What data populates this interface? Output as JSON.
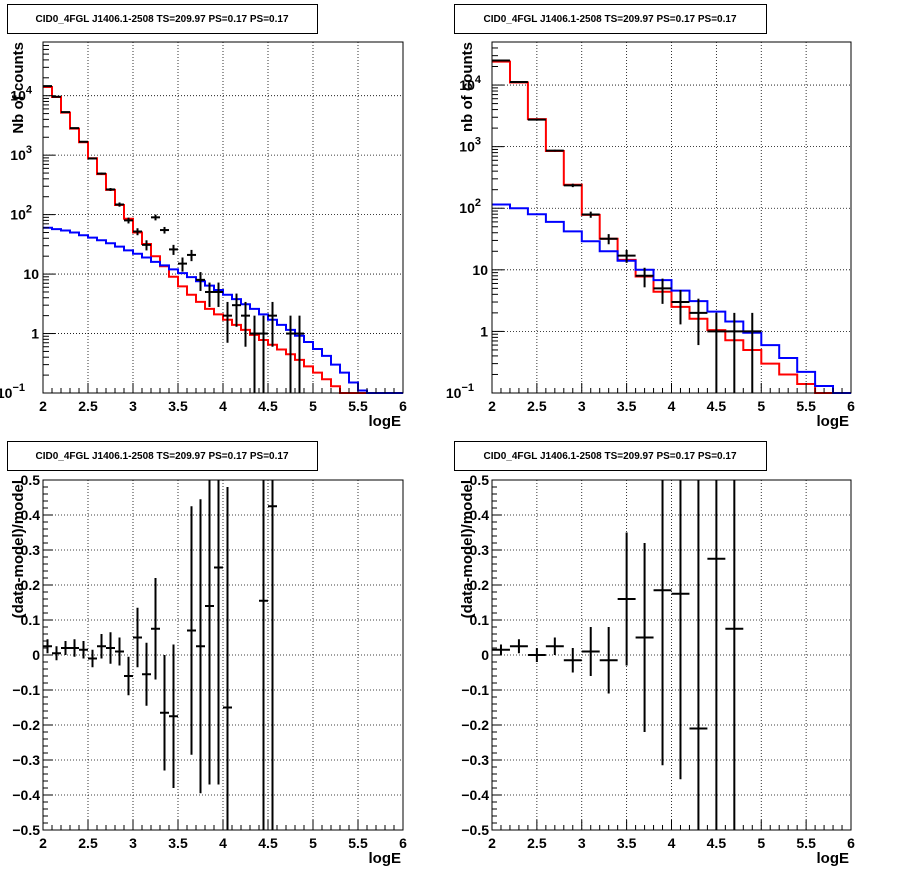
{
  "chart_data": [
    {
      "type": "line",
      "title": "CID0_4FGL J1406.1-2508 TS=209.97 PS=0.17 PS=0.17",
      "xlabel": "logE",
      "ylabel": "Nb of counts",
      "xlim": [
        2,
        6
      ],
      "ylim": [
        0.1,
        80000
      ],
      "yscale": "log",
      "grid": true,
      "xticks": [
        "2",
        "2.5",
        "3",
        "3.5",
        "4",
        "4.5",
        "5",
        "5.5",
        "6"
      ],
      "yticks": [
        {
          "v": 0.1,
          "label": "10",
          "exp": "−1"
        },
        {
          "v": 1,
          "label": "1"
        },
        {
          "v": 10,
          "label": "10"
        },
        {
          "v": 100,
          "label": "10",
          "exp": "2"
        },
        {
          "v": 1000,
          "label": "10",
          "exp": "3"
        },
        {
          "v": 10000,
          "label": "10",
          "exp": "4"
        }
      ],
      "bin_edges": [
        2.0,
        2.1,
        2.2,
        2.3,
        2.4,
        2.5,
        2.6,
        2.7,
        2.8,
        2.9,
        3.0,
        3.1,
        3.2,
        3.3,
        3.4,
        3.5,
        3.6,
        3.7,
        3.8,
        3.9,
        4.0,
        4.1,
        4.2,
        4.3,
        4.4,
        4.5,
        4.6,
        4.7,
        4.8,
        4.9,
        5.0,
        5.1,
        5.2,
        5.3,
        5.4,
        5.5,
        5.6,
        5.7,
        5.8,
        5.9,
        6.0
      ],
      "series": [
        {
          "name": "",
          "color": "#ff0000",
          "values": [
            14000,
            9500,
            5200,
            2800,
            1650,
            890,
            480,
            260,
            145,
            85,
            50,
            32,
            20,
            13.5,
            9,
            6.2,
            4.5,
            3.4,
            2.6,
            2.1,
            1.7,
            1.4,
            1.15,
            0.95,
            0.78,
            0.65,
            0.54,
            0.45,
            0.36,
            0.28,
            0.22,
            0.17,
            0.13,
            0.1,
            0.1,
            0.1,
            0.1,
            0.1,
            0.1,
            0.1
          ]
        },
        {
          "name": "",
          "color": "#0000ff",
          "values": [
            60,
            57,
            54,
            50,
            45,
            41,
            37,
            33,
            29,
            25,
            22,
            19,
            16,
            14,
            12,
            10.4,
            8.9,
            7.6,
            6.4,
            5.4,
            4.5,
            3.8,
            3.1,
            2.6,
            2.1,
            1.7,
            1.4,
            1.15,
            0.92,
            0.72,
            0.55,
            0.42,
            0.3,
            0.22,
            0.15,
            0.11,
            0.1,
            0.1,
            0.1,
            0.1
          ]
        }
      ],
      "data_points": [
        {
          "x": 2.05,
          "y": 14500,
          "lo": 14300,
          "hi": 14700
        },
        {
          "x": 2.15,
          "y": 9600,
          "lo": 9500,
          "hi": 9700
        },
        {
          "x": 2.25,
          "y": 5300,
          "lo": 5230,
          "hi": 5370
        },
        {
          "x": 2.35,
          "y": 2850,
          "lo": 2800,
          "hi": 2900
        },
        {
          "x": 2.45,
          "y": 1680,
          "lo": 1640,
          "hi": 1720
        },
        {
          "x": 2.55,
          "y": 880,
          "lo": 850,
          "hi": 910
        },
        {
          "x": 2.65,
          "y": 490,
          "lo": 470,
          "hi": 510
        },
        {
          "x": 2.75,
          "y": 265,
          "lo": 250,
          "hi": 280
        },
        {
          "x": 2.85,
          "y": 148,
          "lo": 136,
          "hi": 160
        },
        {
          "x": 2.95,
          "y": 80,
          "lo": 71,
          "hi": 89
        },
        {
          "x": 3.05,
          "y": 52,
          "lo": 45,
          "hi": 59
        },
        {
          "x": 3.15,
          "y": 31,
          "lo": 25,
          "hi": 37
        },
        {
          "x": 3.25,
          "y": 90,
          "lo": 80,
          "hi": 100
        },
        {
          "x": 3.35,
          "y": 55,
          "lo": 48,
          "hi": 62
        },
        {
          "x": 3.45,
          "y": 26,
          "lo": 21,
          "hi": 31
        },
        {
          "x": 3.55,
          "y": 15,
          "lo": 11,
          "hi": 19
        },
        {
          "x": 3.65,
          "y": 21,
          "lo": 16.5,
          "hi": 25.5
        },
        {
          "x": 3.75,
          "y": 8,
          "lo": 5.2,
          "hi": 10.8
        },
        {
          "x": 3.85,
          "y": 5,
          "lo": 2.8,
          "hi": 7.2
        },
        {
          "x": 3.95,
          "y": 5,
          "lo": 2.8,
          "hi": 7.2
        },
        {
          "x": 4.05,
          "y": 2,
          "lo": 0.7,
          "hi": 3.4
        },
        {
          "x": 4.15,
          "y": 3,
          "lo": 1.3,
          "hi": 4.7
        },
        {
          "x": 4.25,
          "y": 2,
          "lo": 0.6,
          "hi": 3.4
        },
        {
          "x": 4.35,
          "y": 1,
          "lo": 0.1,
          "hi": 2.0
        },
        {
          "x": 4.45,
          "y": 1,
          "lo": 0.1,
          "hi": 2.0
        },
        {
          "x": 4.55,
          "y": 2,
          "lo": 0.6,
          "hi": 3.4
        },
        {
          "x": 4.75,
          "y": 1,
          "lo": 0.1,
          "hi": 2.0
        },
        {
          "x": 4.85,
          "y": 1,
          "lo": 0.1,
          "hi": 2.0
        }
      ]
    },
    {
      "type": "line",
      "title": "CID0_4FGL J1406.1-2508 TS=209.97 PS=0.17 PS=0.17",
      "xlabel": "logE",
      "ylabel": "nb of counts",
      "xlim": [
        2,
        6
      ],
      "ylim": [
        0.1,
        50000
      ],
      "yscale": "log",
      "grid": true,
      "xticks": [
        "2",
        "2.5",
        "3",
        "3.5",
        "4",
        "4.5",
        "5",
        "5.5",
        "6"
      ],
      "yticks": [
        {
          "v": 0.1,
          "label": "10",
          "exp": "−1"
        },
        {
          "v": 1,
          "label": "1"
        },
        {
          "v": 10,
          "label": "10"
        },
        {
          "v": 100,
          "label": "10",
          "exp": "2"
        },
        {
          "v": 1000,
          "label": "10",
          "exp": "3"
        },
        {
          "v": 10000,
          "label": "10",
          "exp": "4"
        }
      ],
      "bin_edges": [
        2.0,
        2.2,
        2.4,
        2.6,
        2.8,
        3.0,
        3.2,
        3.4,
        3.6,
        3.8,
        4.0,
        4.2,
        4.4,
        4.6,
        4.8,
        5.0,
        5.2,
        5.4,
        5.6,
        5.8,
        6.0
      ],
      "series": [
        {
          "name": "",
          "color": "#ff0000",
          "values": [
            24000,
            11000,
            2800,
            850,
            240,
            78,
            32,
            14.5,
            7.8,
            4.4,
            2.5,
            1.6,
            1.05,
            0.72,
            0.5,
            0.3,
            0.2,
            0.14,
            0.1,
            0.1
          ]
        },
        {
          "name": "",
          "color": "#0000ff",
          "values": [
            115,
            100,
            80,
            60,
            42,
            29,
            20,
            14,
            10,
            6.8,
            4.6,
            3.1,
            2.1,
            1.45,
            0.95,
            0.6,
            0.37,
            0.22,
            0.13,
            0.1
          ]
        }
      ],
      "data_points": [
        {
          "x": 2.1,
          "y": 25000,
          "lo": 24800,
          "hi": 25200
        },
        {
          "x": 2.3,
          "y": 11200,
          "lo": 11050,
          "hi": 11350
        },
        {
          "x": 2.5,
          "y": 2750,
          "lo": 2700,
          "hi": 2800
        },
        {
          "x": 2.7,
          "y": 860,
          "lo": 830,
          "hi": 890
        },
        {
          "x": 2.9,
          "y": 235,
          "lo": 220,
          "hi": 250
        },
        {
          "x": 3.1,
          "y": 79,
          "lo": 70,
          "hi": 88
        },
        {
          "x": 3.3,
          "y": 32,
          "lo": 26,
          "hi": 38
        },
        {
          "x": 3.5,
          "y": 17,
          "lo": 13,
          "hi": 21
        },
        {
          "x": 3.7,
          "y": 8,
          "lo": 5.2,
          "hi": 10.8
        },
        {
          "x": 3.9,
          "y": 5,
          "lo": 2.8,
          "hi": 7.2
        },
        {
          "x": 4.1,
          "y": 3,
          "lo": 1.3,
          "hi": 4.7
        },
        {
          "x": 4.3,
          "y": 2,
          "lo": 0.6,
          "hi": 3.4
        },
        {
          "x": 4.5,
          "y": 1,
          "lo": 0.1,
          "hi": 2.0
        },
        {
          "x": 4.7,
          "y": 1,
          "lo": 0.1,
          "hi": 2.0
        },
        {
          "x": 4.9,
          "y": 1,
          "lo": 0.1,
          "hi": 2.0
        }
      ]
    },
    {
      "type": "scatter",
      "title": "CID0_4FGL J1406.1-2508 TS=209.97 PS=0.17 PS=0.17",
      "xlabel": "logE",
      "ylabel": "(data-model)/model",
      "xlim": [
        2,
        6
      ],
      "ylim": [
        -0.5,
        0.5
      ],
      "grid": true,
      "xticks": [
        "2",
        "2.5",
        "3",
        "3.5",
        "4",
        "4.5",
        "5",
        "5.5",
        "6"
      ],
      "yticks": [
        "−0.5",
        "−0.4",
        "−0.3",
        "−0.2",
        "−0.1",
        "0",
        "0.1",
        "0.2",
        "0.3",
        "0.4",
        "0.5"
      ],
      "bin_width": 0.1,
      "data_points": [
        {
          "x": 2.05,
          "y": 0.025,
          "err": 0.02
        },
        {
          "x": 2.15,
          "y": 0.005,
          "err": 0.02
        },
        {
          "x": 2.25,
          "y": 0.02,
          "err": 0.02
        },
        {
          "x": 2.35,
          "y": 0.02,
          "err": 0.025
        },
        {
          "x": 2.45,
          "y": 0.015,
          "err": 0.025
        },
        {
          "x": 2.55,
          "y": -0.01,
          "err": 0.025
        },
        {
          "x": 2.65,
          "y": 0.025,
          "err": 0.035
        },
        {
          "x": 2.75,
          "y": 0.02,
          "err": 0.045
        },
        {
          "x": 2.85,
          "y": 0.01,
          "err": 0.04
        },
        {
          "x": 2.95,
          "y": -0.06,
          "err": 0.055
        },
        {
          "x": 3.05,
          "y": 0.05,
          "err": 0.085
        },
        {
          "x": 3.15,
          "y": -0.055,
          "err": 0.09
        },
        {
          "x": 3.25,
          "y": 0.075,
          "err": 0.145
        },
        {
          "x": 3.35,
          "y": -0.165,
          "err": 0.165
        },
        {
          "x": 3.45,
          "y": -0.175,
          "err": 0.205
        },
        {
          "x": 3.65,
          "y": 0.07,
          "err": 0.355
        },
        {
          "x": 3.75,
          "y": 0.025,
          "err": 0.42
        },
        {
          "x": 3.85,
          "y": 0.14,
          "err": 0.51
        },
        {
          "x": 3.95,
          "y": 0.25,
          "err": 0.62
        },
        {
          "x": 4.05,
          "y": -0.15,
          "err": 0.63
        },
        {
          "x": 4.45,
          "y": 0.155,
          "err": 0.9
        },
        {
          "x": 4.55,
          "y": 0.425,
          "err": 1.0
        }
      ]
    },
    {
      "type": "scatter",
      "title": "CID0_4FGL J1406.1-2508 TS=209.97 PS=0.17 PS=0.17",
      "xlabel": "logE",
      "ylabel": "(data-model)/model",
      "xlim": [
        2,
        6
      ],
      "ylim": [
        -0.5,
        0.5
      ],
      "grid": true,
      "xticks": [
        "2",
        "2.5",
        "3",
        "3.5",
        "4",
        "4.5",
        "5",
        "5.5",
        "6"
      ],
      "yticks": [
        "−0.5",
        "−0.4",
        "−0.3",
        "−0.2",
        "−0.1",
        "0",
        "0.1",
        "0.2",
        "0.3",
        "0.4",
        "0.5"
      ],
      "bin_width": 0.2,
      "data_points": [
        {
          "x": 2.1,
          "y": 0.015,
          "err": 0.015
        },
        {
          "x": 2.3,
          "y": 0.025,
          "err": 0.02
        },
        {
          "x": 2.5,
          "y": 0.0,
          "err": 0.02
        },
        {
          "x": 2.7,
          "y": 0.025,
          "err": 0.025
        },
        {
          "x": 2.9,
          "y": -0.015,
          "err": 0.035
        },
        {
          "x": 3.1,
          "y": 0.01,
          "err": 0.07
        },
        {
          "x": 3.3,
          "y": -0.015,
          "err": 0.095
        },
        {
          "x": 3.5,
          "y": 0.16,
          "err": 0.19
        },
        {
          "x": 3.7,
          "y": 0.05,
          "err": 0.27
        },
        {
          "x": 3.9,
          "y": 0.185,
          "err": 0.5
        },
        {
          "x": 4.1,
          "y": 0.175,
          "err": 0.53
        },
        {
          "x": 4.3,
          "y": -0.21,
          "err": 0.8
        },
        {
          "x": 4.5,
          "y": 0.275,
          "err": 1.0
        },
        {
          "x": 4.7,
          "y": 0.075,
          "err": 1.0
        }
      ]
    }
  ]
}
